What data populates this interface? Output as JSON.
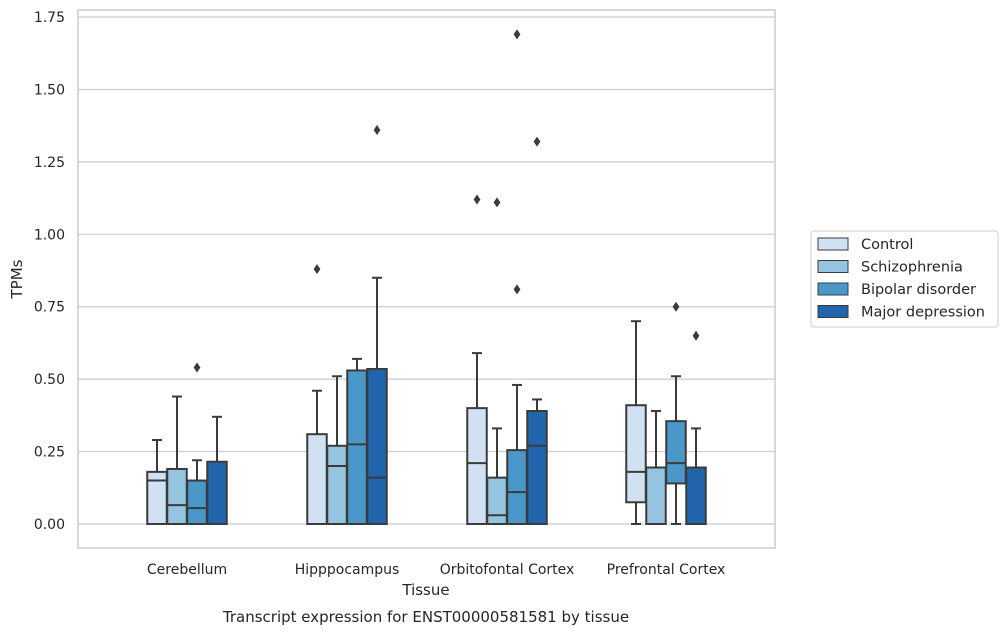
{
  "chart_data": {
    "type": "box",
    "title": "",
    "caption": "Transcript expression for ENST00000581581 by tissue",
    "xlabel": "Tissue",
    "ylabel": "TPMs",
    "ylim": [
      -0.08,
      1.77
    ],
    "yticks": [
      "0.00",
      "0.25",
      "0.50",
      "0.75",
      "1.00",
      "1.25",
      "1.50",
      "1.75"
    ],
    "grid": "horizontal",
    "legend_position": "right",
    "categories": [
      "Cerebellum",
      "Hipppocampus",
      "Orbitofontal Cortex",
      "Prefrontal Cortex"
    ],
    "series": [
      {
        "name": "Control",
        "color": "#d0e1f2",
        "boxes": [
          {
            "q1": 0.0,
            "median": 0.15,
            "q3": 0.18,
            "whisker_low": 0.0,
            "whisker_high": 0.29,
            "outliers": []
          },
          {
            "q1": 0.0,
            "median": 0.0,
            "q3": 0.31,
            "whisker_low": 0.0,
            "whisker_high": 0.46,
            "outliers": [
              0.88
            ]
          },
          {
            "q1": 0.0,
            "median": 0.21,
            "q3": 0.4,
            "whisker_low": 0.0,
            "whisker_high": 0.59,
            "outliers": [
              1.12
            ]
          },
          {
            "q1": 0.075,
            "median": 0.18,
            "q3": 0.41,
            "whisker_low": 0.0,
            "whisker_high": 0.7,
            "outliers": []
          }
        ]
      },
      {
        "name": "Schizophrenia",
        "color": "#94c4df",
        "boxes": [
          {
            "q1": 0.0,
            "median": 0.065,
            "q3": 0.19,
            "whisker_low": 0.0,
            "whisker_high": 0.44,
            "outliers": []
          },
          {
            "q1": 0.0,
            "median": 0.2,
            "q3": 0.27,
            "whisker_low": 0.0,
            "whisker_high": 0.51,
            "outliers": []
          },
          {
            "q1": 0.0,
            "median": 0.03,
            "q3": 0.16,
            "whisker_low": 0.0,
            "whisker_high": 0.33,
            "outliers": [
              1.11
            ]
          },
          {
            "q1": 0.0,
            "median": 0.0,
            "q3": 0.195,
            "whisker_low": 0.0,
            "whisker_high": 0.39,
            "outliers": []
          }
        ]
      },
      {
        "name": "Bipolar disorder",
        "color": "#4a98c9",
        "boxes": [
          {
            "q1": 0.0,
            "median": 0.055,
            "q3": 0.15,
            "whisker_low": 0.0,
            "whisker_high": 0.22,
            "outliers": [
              0.54
            ]
          },
          {
            "q1": 0.0,
            "median": 0.275,
            "q3": 0.53,
            "whisker_low": 0.0,
            "whisker_high": 0.57,
            "outliers": []
          },
          {
            "q1": 0.0,
            "median": 0.11,
            "q3": 0.255,
            "whisker_low": 0.0,
            "whisker_high": 0.48,
            "outliers": [
              0.81,
              1.69
            ]
          },
          {
            "q1": 0.14,
            "median": 0.21,
            "q3": 0.355,
            "whisker_low": 0.0,
            "whisker_high": 0.51,
            "outliers": [
              0.75
            ]
          }
        ]
      },
      {
        "name": "Major depression",
        "color": "#2166ac",
        "boxes": [
          {
            "q1": 0.0,
            "median": 0.0,
            "q3": 0.215,
            "whisker_low": 0.0,
            "whisker_high": 0.37,
            "outliers": []
          },
          {
            "q1": 0.0,
            "median": 0.16,
            "q3": 0.535,
            "whisker_low": 0.0,
            "whisker_high": 0.85,
            "outliers": [
              1.36
            ]
          },
          {
            "q1": 0.0,
            "median": 0.27,
            "q3": 0.39,
            "whisker_low": 0.0,
            "whisker_high": 0.43,
            "outliers": [
              1.32
            ]
          },
          {
            "q1": 0.0,
            "median": 0.0,
            "q3": 0.195,
            "whisker_low": 0.0,
            "whisker_high": 0.33,
            "outliers": [
              0.65
            ]
          }
        ]
      }
    ]
  }
}
